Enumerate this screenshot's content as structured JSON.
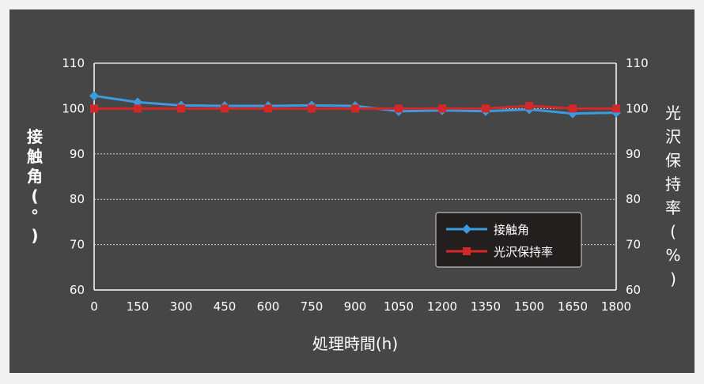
{
  "chart_data": {
    "type": "line",
    "x": [
      0,
      150,
      300,
      450,
      600,
      750,
      900,
      1050,
      1200,
      1350,
      1500,
      1650,
      1800
    ],
    "xlabel": "処理時間(h)",
    "ylabel_left": "接触角(°)",
    "ylabel_right": "光沢保持率(%)",
    "ylim": [
      60,
      110
    ],
    "y_ticks": [
      60,
      70,
      80,
      90,
      100,
      110
    ],
    "grid": "horizontal dotted",
    "legend_position": "lower-right",
    "series": [
      {
        "name": "接触角",
        "axis": "left",
        "color": "#3a9be0",
        "marker": "diamond",
        "values": [
          102.8,
          101.4,
          100.7,
          100.6,
          100.6,
          100.7,
          100.6,
          99.4,
          99.6,
          99.4,
          99.8,
          98.9,
          99.1
        ]
      },
      {
        "name": "光沢保持率",
        "axis": "right",
        "color": "#d42828",
        "marker": "square",
        "values": [
          100,
          100,
          100,
          100,
          100,
          100,
          100,
          100,
          100,
          100,
          100.6,
          100,
          100
        ]
      }
    ]
  }
}
